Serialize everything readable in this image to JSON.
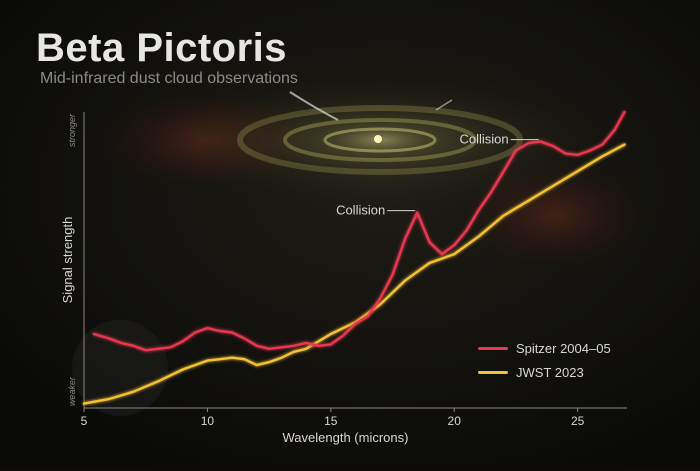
{
  "title": "Beta Pictoris",
  "subtitle": "Mid-infrared dust cloud observations",
  "colors": {
    "spitzer": "#e8374f",
    "jwst": "#f3c233",
    "axis": "#8a8781",
    "text": "#d8d6d2"
  },
  "chart_data": {
    "type": "line",
    "xlabel": "Wavelength (microns)",
    "ylabel": "Signal strength",
    "x_ticks": [
      5,
      10,
      15,
      20,
      25
    ],
    "xlim": [
      5,
      27
    ],
    "ylim": [
      0,
      100
    ],
    "y_tick_labels": {
      "top": "stronger",
      "bottom": "weaker"
    },
    "legend_placement": "bottom-right",
    "series": [
      {
        "name": "Spitzer 2004–05",
        "color": "#e8374f",
        "x": [
          5.4,
          6.0,
          6.5,
          7.0,
          7.5,
          8.0,
          8.5,
          9.0,
          9.5,
          10.0,
          10.5,
          11.0,
          11.5,
          12.0,
          12.5,
          13.0,
          13.5,
          14.0,
          14.5,
          15.0,
          15.5,
          16.0,
          16.5,
          17.0,
          17.5,
          18.0,
          18.5,
          19.0,
          19.5,
          20.0,
          20.5,
          21.0,
          21.5,
          22.0,
          22.5,
          23.0,
          23.5,
          24.0,
          24.5,
          25.0,
          25.5,
          26.0,
          26.5,
          26.9
        ],
        "y": [
          25.0,
          23.5,
          22.0,
          21.0,
          19.5,
          20.0,
          20.5,
          22.5,
          25.5,
          27.0,
          26.0,
          25.5,
          23.5,
          21.0,
          20.0,
          20.5,
          21.0,
          22.0,
          21.0,
          21.5,
          24.5,
          28.5,
          31.0,
          37.0,
          45.0,
          57.0,
          66.0,
          56.0,
          52.0,
          55.0,
          60.0,
          67.0,
          73.0,
          80.0,
          87.0,
          89.5,
          90.0,
          88.5,
          86.0,
          85.5,
          87.0,
          89.0,
          94.0,
          100.0
        ]
      },
      {
        "name": "JWST 2023",
        "color": "#f3c233",
        "x": [
          5.0,
          6.0,
          7.0,
          8.0,
          9.0,
          10.0,
          10.5,
          11.0,
          11.5,
          12.0,
          12.5,
          13.0,
          13.5,
          14.0,
          15.0,
          16.0,
          17.0,
          18.0,
          19.0,
          20.0,
          21.0,
          22.0,
          23.0,
          24.0,
          25.0,
          26.0,
          26.9
        ],
        "y": [
          1.5,
          3.0,
          5.5,
          9.0,
          13.0,
          16.0,
          16.5,
          17.0,
          16.5,
          14.5,
          15.5,
          17.0,
          19.0,
          20.0,
          25.0,
          29.0,
          35.0,
          43.0,
          49.0,
          52.0,
          58.0,
          65.0,
          70.0,
          75.0,
          80.0,
          85.0,
          89.0
        ]
      }
    ],
    "annotations": [
      {
        "text": "Collision",
        "x": 18.5,
        "y": 66.0
      },
      {
        "text": "Collision",
        "x": 23.5,
        "y": 90.0
      }
    ]
  }
}
